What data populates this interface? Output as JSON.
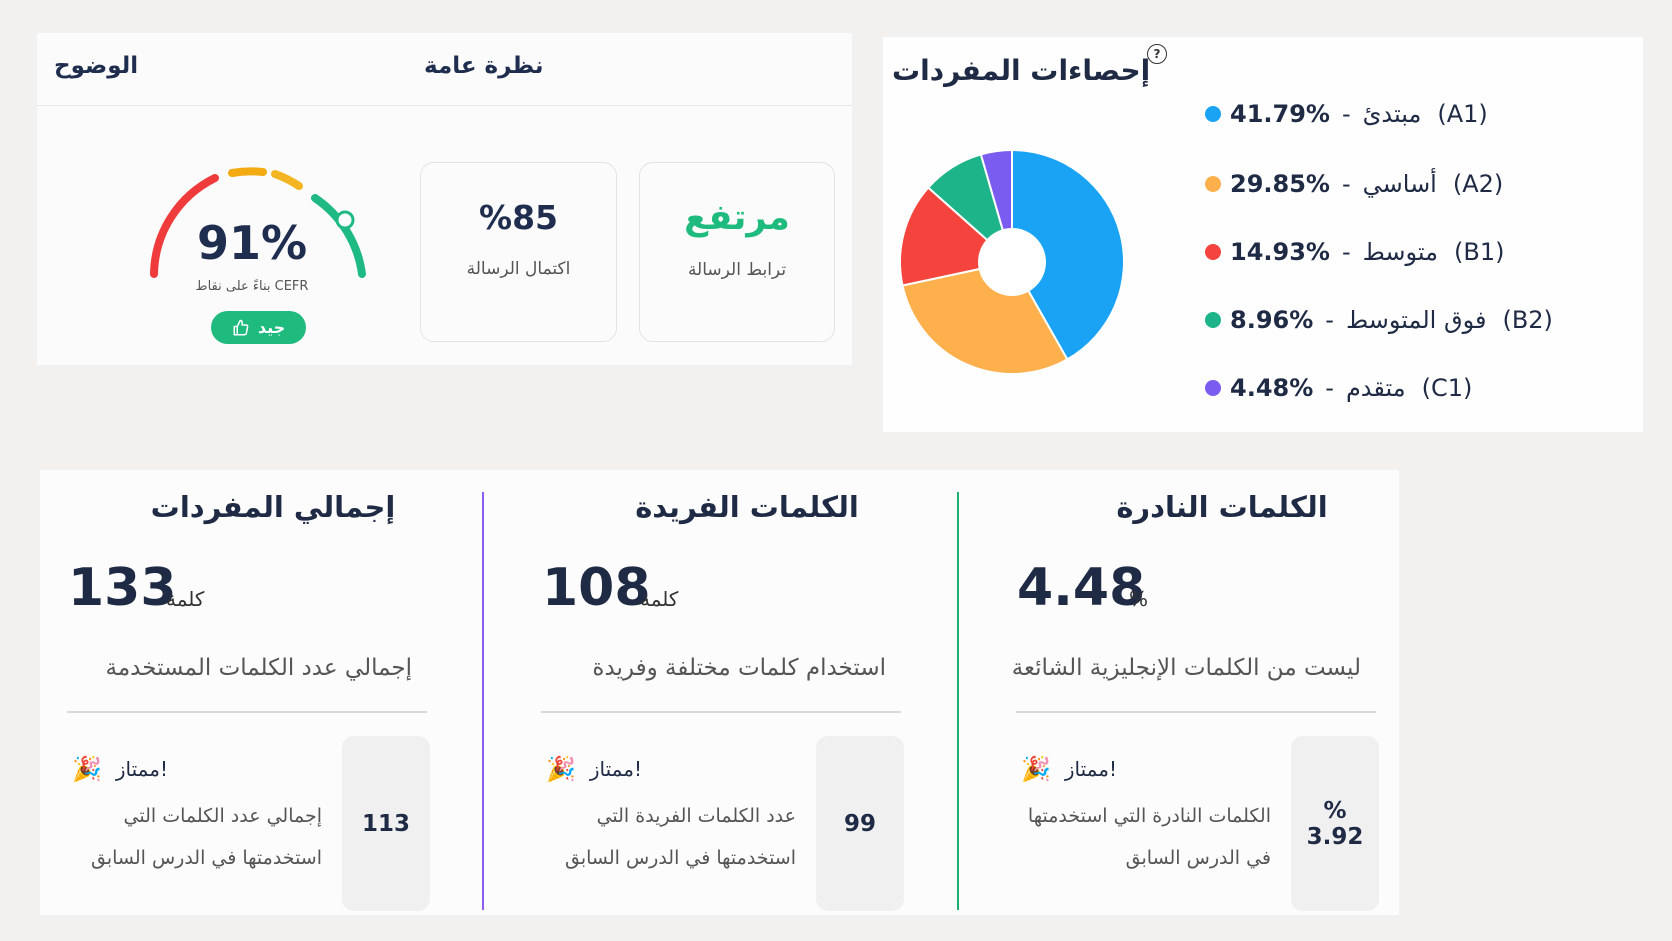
{
  "overview": {
    "clarity_title": "الوضوح",
    "overview_title": "نظرة عامة",
    "gauge": {
      "score": "91%",
      "subtitle": "بناءً على نقاط CEFR",
      "badge": "جيد",
      "badge_icon": "thumbs-up-icon",
      "level": 0.91
    },
    "cards": {
      "completion": {
        "value": "%85",
        "label": "اكتمال الرسالة"
      },
      "coherence": {
        "value": "مرتفع",
        "label": "ترابط الرسالة"
      }
    }
  },
  "vocab_stats": {
    "title": "إحصاءات المفردات",
    "help_icon": "help-circle-icon",
    "legend": [
      {
        "pct": "41.79%",
        "name": "مبتدئ",
        "code": "(A1)",
        "color": "#1aa3f5"
      },
      {
        "pct": "29.85%",
        "name": "أساسي",
        "code": "(A2)",
        "color": "#fdb04c"
      },
      {
        "pct": "14.93%",
        "name": "متوسط",
        "code": "(B1)",
        "color": "#f5443d"
      },
      {
        "pct": "8.96%",
        "name": "فوق المتوسط",
        "code": "(B2)",
        "color": "#1db489"
      },
      {
        "pct": "4.48%",
        "name": "متقدم",
        "code": "(C1)",
        "color": "#7b5cf0"
      }
    ]
  },
  "chart_data": {
    "type": "pie",
    "title": "إحصاءات المفردات",
    "categories": [
      "مبتدئ (A1)",
      "أساسي (A2)",
      "متوسط (B1)",
      "فوق المتوسط (B2)",
      "متقدم (C1)"
    ],
    "values": [
      41.79,
      29.85,
      14.93,
      8.96,
      4.48
    ],
    "colors": [
      "#1aa3f5",
      "#fdb04c",
      "#f5443d",
      "#1db489",
      "#7b5cf0"
    ],
    "legend": "right"
  },
  "metrics": [
    {
      "title": "إجمالي المفردات",
      "number": "133",
      "unit": "كلمة",
      "desc": "إجمالي عدد الكلمات المستخدمة",
      "excellent": "ممتاز!",
      "icon": "party-popper-icon",
      "note_line1": "إجمالي عدد الكلمات التي",
      "note_line2": "استخدمتها في الدرس السابق",
      "prev_top": "",
      "prev": "113"
    },
    {
      "title": "الكلمات الفريدة",
      "number": "108",
      "unit": "كلمة",
      "desc": "استخدام كلمات مختلفة وفريدة",
      "excellent": "ممتاز!",
      "icon": "party-popper-icon",
      "note_line1": "عدد الكلمات الفريدة التي",
      "note_line2": "استخدمتها في الدرس السابق",
      "prev_top": "",
      "prev": "99"
    },
    {
      "title": "الكلمات النادرة",
      "number": "4.48",
      "unit": "%",
      "desc": "ليست من الكلمات الإنجليزية الشائعة",
      "excellent": "ممتاز!",
      "icon": "party-popper-icon",
      "note_line1": "الكلمات النادرة التي استخدمتها",
      "note_line2": "في الدرس السابق",
      "prev_top": "%",
      "prev": "3.92"
    }
  ]
}
